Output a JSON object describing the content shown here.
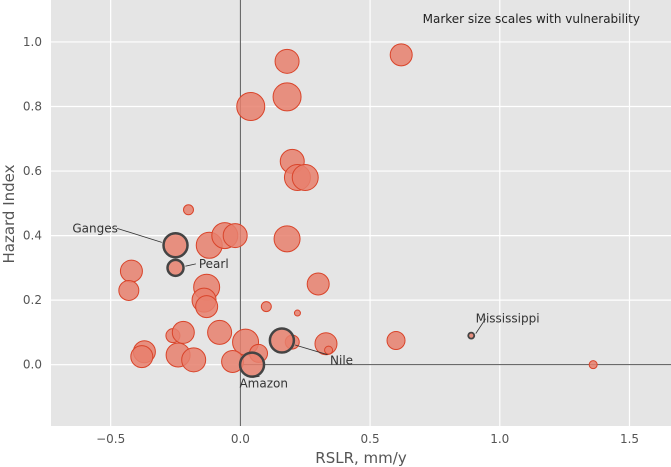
{
  "chart_data": {
    "type": "scatter",
    "title": "",
    "xlabel": "RSLR, mm/y",
    "ylabel": "Hazard Index",
    "xlim": [
      -0.73,
      1.66
    ],
    "ylim": [
      -0.19,
      1.13
    ],
    "xticks": [
      -0.5,
      0.0,
      0.5,
      1.0,
      1.5
    ],
    "xtick_labels": [
      "−0.5",
      "0.0",
      "0.5",
      "1.0",
      "1.5"
    ],
    "yticks": [
      0.0,
      0.2,
      0.4,
      0.6,
      0.8,
      1.0
    ],
    "ytick_labels": [
      "0.0",
      "0.2",
      "0.4",
      "0.6",
      "0.8",
      "1.0"
    ],
    "grid": true,
    "zero_lines": true,
    "note": "Marker size scales with vulnerability",
    "colors": {
      "background": "#e5e5e5",
      "grid": "#ffffff",
      "marker_fill": "#e8806d",
      "marker_edge": "#d9442a",
      "highlight_edge": "#444444",
      "zero_line": "#555555"
    },
    "points": [
      {
        "x": 0.18,
        "y": 0.94,
        "size": 12
      },
      {
        "x": 0.62,
        "y": 0.96,
        "size": 11
      },
      {
        "x": 0.04,
        "y": 0.8,
        "size": 14
      },
      {
        "x": 0.18,
        "y": 0.83,
        "size": 14
      },
      {
        "x": 0.2,
        "y": 0.63,
        "size": 12
      },
      {
        "x": 0.22,
        "y": 0.58,
        "size": 13
      },
      {
        "x": 0.25,
        "y": 0.58,
        "size": 13
      },
      {
        "x": -0.2,
        "y": 0.48,
        "size": 5
      },
      {
        "x": -0.12,
        "y": 0.37,
        "size": 13
      },
      {
        "x": -0.06,
        "y": 0.4,
        "size": 13
      },
      {
        "x": -0.02,
        "y": 0.4,
        "size": 12
      },
      {
        "x": 0.18,
        "y": 0.39,
        "size": 13
      },
      {
        "x": -0.42,
        "y": 0.29,
        "size": 11
      },
      {
        "x": -0.43,
        "y": 0.23,
        "size": 10
      },
      {
        "x": -0.13,
        "y": 0.24,
        "size": 13
      },
      {
        "x": -0.14,
        "y": 0.2,
        "size": 12
      },
      {
        "x": -0.13,
        "y": 0.18,
        "size": 11
      },
      {
        "x": 0.3,
        "y": 0.25,
        "size": 11
      },
      {
        "x": 0.1,
        "y": 0.18,
        "size": 5
      },
      {
        "x": 0.22,
        "y": 0.16,
        "size": 3
      },
      {
        "x": -0.26,
        "y": 0.09,
        "size": 7
      },
      {
        "x": -0.22,
        "y": 0.1,
        "size": 11
      },
      {
        "x": -0.08,
        "y": 0.1,
        "size": 12
      },
      {
        "x": -0.37,
        "y": 0.04,
        "size": 11
      },
      {
        "x": -0.38,
        "y": 0.025,
        "size": 11
      },
      {
        "x": -0.24,
        "y": 0.03,
        "size": 12
      },
      {
        "x": -0.18,
        "y": 0.015,
        "size": 12
      },
      {
        "x": 0.02,
        "y": 0.07,
        "size": 13
      },
      {
        "x": -0.03,
        "y": 0.01,
        "size": 11
      },
      {
        "x": 0.07,
        "y": 0.035,
        "size": 9
      },
      {
        "x": 0.2,
        "y": 0.07,
        "size": 7
      },
      {
        "x": 0.33,
        "y": 0.065,
        "size": 11
      },
      {
        "x": 0.34,
        "y": 0.045,
        "size": 4
      },
      {
        "x": 0.6,
        "y": 0.075,
        "size": 9
      },
      {
        "x": 1.36,
        "y": 0.0,
        "size": 4
      }
    ],
    "highlighted": [
      {
        "name": "Ganges",
        "x": -0.25,
        "y": 0.37,
        "size": 12
      },
      {
        "name": "Pearl",
        "x": -0.25,
        "y": 0.3,
        "size": 8
      },
      {
        "name": "Nile",
        "x": 0.16,
        "y": 0.075,
        "size": 12
      },
      {
        "name": "Amazon",
        "x": 0.045,
        "y": 0.0,
        "size": 12
      },
      {
        "name": "Mississippi",
        "x": 0.89,
        "y": 0.09,
        "size": 3
      }
    ],
    "annotations": [
      {
        "text": "Ganges",
        "target": "Ganges",
        "tx": -0.56,
        "ty": 0.41,
        "anchor": "middle"
      },
      {
        "text": "Pearl",
        "target": "Pearl",
        "tx": -0.16,
        "ty": 0.3,
        "anchor": "start"
      },
      {
        "text": "Nile",
        "target": "Nile",
        "tx": 0.39,
        "ty": 0.0,
        "anchor": "middle"
      },
      {
        "text": "Amazon",
        "target": "Amazon",
        "tx": 0.09,
        "ty": -0.07,
        "anchor": "middle"
      },
      {
        "text": "Mississippi",
        "target": "Mississippi",
        "tx": 1.03,
        "ty": 0.13,
        "anchor": "middle"
      }
    ]
  }
}
